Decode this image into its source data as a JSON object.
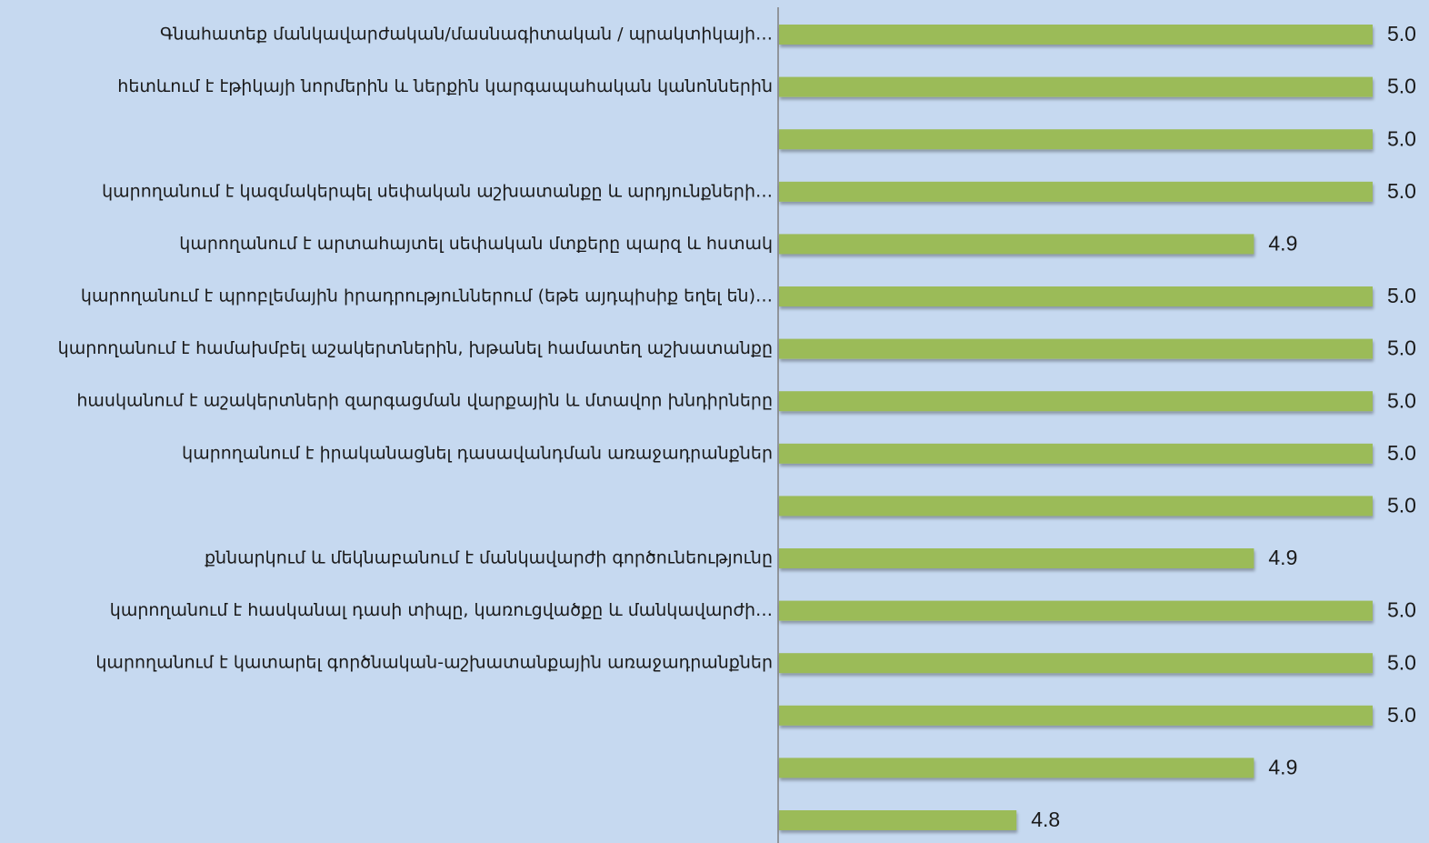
{
  "chart_data": {
    "type": "barh",
    "categories": [
      "Գնահատեք մանկավարժական/մասնագիտական / պրակտիկայի…",
      "հետևում է էթիկայի նորմերին և ներքին կարգապահական կանոններին",
      null,
      "կարողանում է կազմակերպել սեփական աշխատանքը և արդյունքների…",
      "կարողանում է արտահայտել սեփական մտքերը պարզ և հստակ",
      "կարողանում է պրոբլեմային իրադրություններում (եթե այդպիսիք եղել են)…",
      "կարողանում է համախմբել աշակերտներին, խթանել համատեղ աշխատանքը",
      "հասկանում է աշակերտների զարգացման վարքային և մտավոր խնդիրները",
      "կարողանում է իրականացնել դասավանդման առաջադրանքներ",
      null,
      "քննարկում և  մեկնաբանում է մանկավարժի գործունեությունը",
      "կարողանում է հասկանալ դասի տիպը, կառուցվածքը և մանկավարժի…",
      "կարողանում է կատարել գործնական-աշխատանքային առաջադրանքներ",
      null,
      null,
      null
    ],
    "values": [
      4.96,
      4.96,
      4.96,
      4.96,
      4.91,
      4.96,
      4.96,
      4.96,
      4.96,
      4.96,
      4.91,
      4.96,
      4.96,
      4.96,
      4.91,
      4.81
    ],
    "value_labels": [
      "5.0",
      "5.0",
      "5.0",
      "5.0",
      "4.9",
      "5.0",
      "5.0",
      "5.0",
      "5.0",
      "5.0",
      "4.9",
      "5.0",
      "5.0",
      "5.0",
      "4.9",
      "4.8"
    ],
    "color": "#9bbb59",
    "xlim": [
      4.71,
      4.96
    ]
  }
}
